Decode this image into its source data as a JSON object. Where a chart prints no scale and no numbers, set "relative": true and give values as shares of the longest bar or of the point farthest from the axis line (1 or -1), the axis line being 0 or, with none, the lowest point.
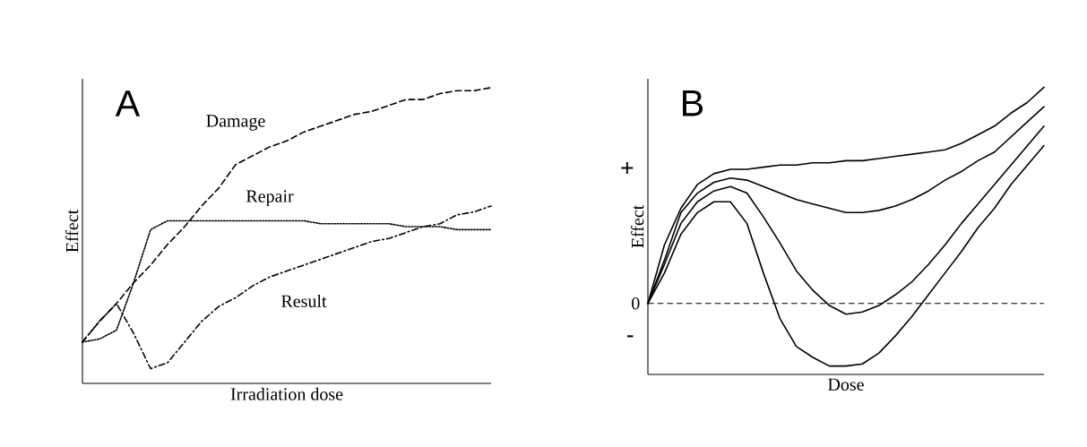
{
  "chart_data": [
    {
      "type": "line",
      "title": "A",
      "xlabel": "Irradiation dose",
      "ylabel": "Effect",
      "relative": true,
      "legend": false,
      "categories": [
        null,
        null,
        null,
        null,
        null,
        null,
        null,
        null,
        null,
        null,
        null,
        null,
        null,
        null,
        null,
        null,
        null,
        null,
        null,
        null,
        null,
        null,
        null,
        null,
        null
      ],
      "series": [
        {
          "name": "Damage",
          "color": "#000000",
          "line_style": "dashed",
          "values": [
            0.14,
            0.21,
            0.27,
            0.34,
            0.4,
            0.47,
            0.53,
            0.6,
            0.66,
            0.74,
            0.77,
            0.8,
            0.82,
            0.85,
            0.87,
            0.89,
            0.91,
            0.92,
            0.94,
            0.96,
            0.96,
            0.98,
            0.99,
            0.99,
            1
          ]
        },
        {
          "name": "Repair",
          "color": "#000000",
          "line_style": "dotted",
          "values": [
            0.14,
            0.15,
            0.18,
            0.34,
            0.52,
            0.55,
            0.55,
            0.55,
            0.55,
            0.55,
            0.55,
            0.55,
            0.55,
            0.55,
            0.54,
            0.54,
            0.54,
            0.54,
            0.54,
            0.53,
            0.53,
            0.53,
            0.52,
            0.52,
            0.52
          ]
        },
        {
          "name": "Result",
          "color": "#000000",
          "line_style": "dashdot",
          "values": [
            0.14,
            0.21,
            0.27,
            0.17,
            0.05,
            0.07,
            0.14,
            0.21,
            0.26,
            0.29,
            0.33,
            0.36,
            0.38,
            0.4,
            0.42,
            0.44,
            0.46,
            0.48,
            0.49,
            0.51,
            0.53,
            0.54,
            0.57,
            0.58,
            0.6
          ]
        }
      ]
    },
    {
      "type": "line",
      "title": "B",
      "xlabel": "Dose",
      "ylabel": "Effect",
      "relative": true,
      "legend": false,
      "categories": [
        null,
        null,
        null,
        null,
        null,
        null,
        null,
        null,
        null,
        null,
        null,
        null,
        null,
        null,
        null,
        null,
        null,
        null,
        null,
        null,
        null,
        null,
        null,
        null,
        null
      ],
      "annotations": [
        "+",
        "-"
      ],
      "ref_lines": [
        {
          "axis": "y",
          "value": 0,
          "label": "0",
          "line_style": "dashed"
        }
      ],
      "series": [
        {
          "color": "#000000",
          "line_style": "solid",
          "values": [
            0,
            0.27,
            0.44,
            0.55,
            0.6,
            0.62,
            0.62,
            0.63,
            0.64,
            0.64,
            0.65,
            0.65,
            0.66,
            0.66,
            0.67,
            0.68,
            0.69,
            0.7,
            0.71,
            0.74,
            0.78,
            0.82,
            0.88,
            0.93,
            1
          ]
        },
        {
          "color": "#000000",
          "line_style": "solid",
          "values": [
            0,
            0.2,
            0.42,
            0.51,
            0.56,
            0.58,
            0.57,
            0.54,
            0.51,
            0.48,
            0.46,
            0.44,
            0.42,
            0.42,
            0.43,
            0.45,
            0.48,
            0.52,
            0.57,
            0.61,
            0.66,
            0.7,
            0.77,
            0.84,
            0.91
          ]
        },
        {
          "color": "#000000",
          "line_style": "solid",
          "values": [
            0,
            0.18,
            0.37,
            0.47,
            0.52,
            0.54,
            0.51,
            0.4,
            0.28,
            0.15,
            0.06,
            -0.01,
            -0.05,
            -0.04,
            -0.01,
            0.04,
            0.1,
            0.18,
            0.27,
            0.37,
            0.46,
            0.55,
            0.64,
            0.73,
            0.82
          ]
        },
        {
          "color": "#000000",
          "line_style": "solid",
          "values": [
            0,
            0.14,
            0.32,
            0.42,
            0.47,
            0.47,
            0.37,
            0.14,
            -0.07,
            -0.2,
            -0.25,
            -0.29,
            -0.29,
            -0.28,
            -0.23,
            -0.15,
            -0.06,
            0.04,
            0.14,
            0.24,
            0.35,
            0.44,
            0.55,
            0.64,
            0.73
          ]
        }
      ]
    }
  ]
}
